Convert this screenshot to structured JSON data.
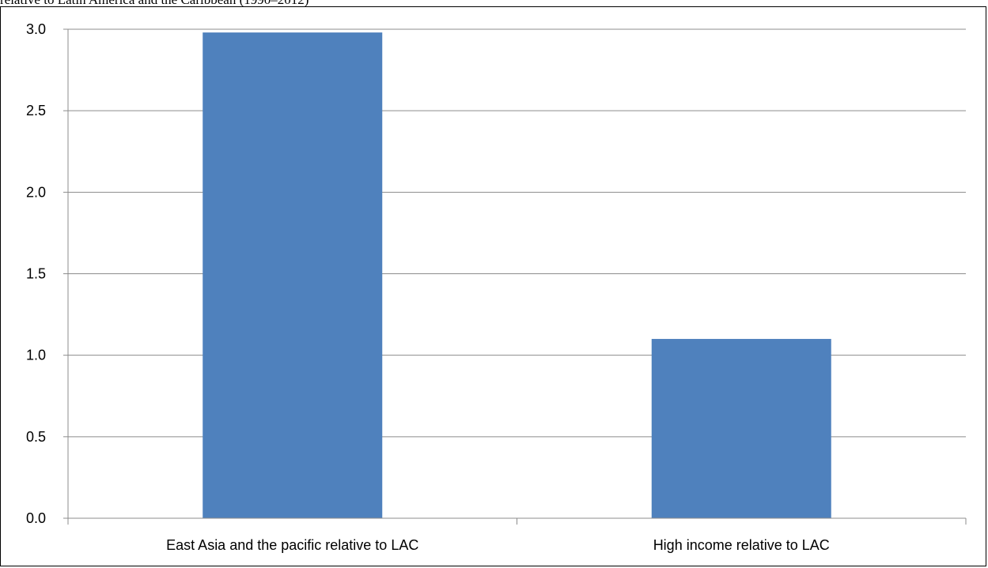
{
  "page": {
    "caption": "relative to Latin America and the Caribbean (1990–2012)"
  },
  "chart_data": {
    "type": "bar",
    "categories": [
      "East Asia and the pacific relative to LAC",
      "High income relative to LAC"
    ],
    "values": [
      2.98,
      1.1
    ],
    "title": "",
    "xlabel": "",
    "ylabel": "",
    "ylim": [
      0,
      3.0
    ],
    "yticks": [
      "0.0",
      "0.5",
      "1.0",
      "1.5",
      "2.0",
      "2.5",
      "3.0"
    ],
    "grid": true,
    "legend": "none",
    "bar_color": "#4f81bd",
    "grid_color": "#8c8c8c"
  }
}
